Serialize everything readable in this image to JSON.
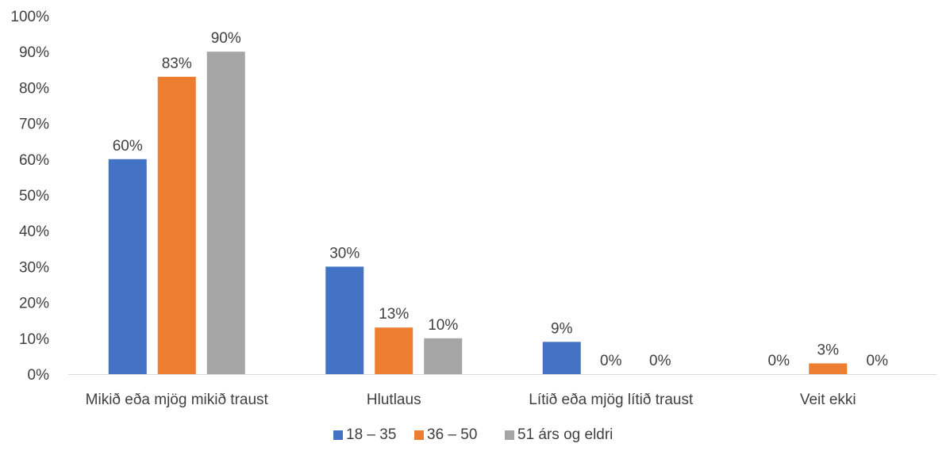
{
  "chart_data": {
    "type": "bar",
    "categories": [
      "Mikið eða mjög mikið traust",
      "Hlutlaus",
      "Lítið eða mjög lítið traust",
      "Veit ekki"
    ],
    "series": [
      {
        "name": "18 – 35",
        "color": "#4472C4",
        "values": [
          60,
          30,
          9,
          0
        ],
        "labels": [
          "60%",
          "30%",
          "9%",
          "0%"
        ]
      },
      {
        "name": "36 – 50",
        "color": "#ED7D31",
        "values": [
          83,
          13,
          0,
          3
        ],
        "labels": [
          "83%",
          "13%",
          "0%",
          "3%"
        ]
      },
      {
        "name": "51 árs og eldri",
        "color": "#A5A5A5",
        "values": [
          90,
          10,
          0,
          0
        ],
        "labels": [
          "90%",
          "10%",
          "0%",
          "0%"
        ]
      }
    ],
    "ylim": [
      0,
      100
    ],
    "yticks": [
      "0%",
      "10%",
      "20%",
      "30%",
      "40%",
      "50%",
      "60%",
      "70%",
      "80%",
      "90%",
      "100%"
    ],
    "grid": false,
    "legend_position": "bottom",
    "title": "",
    "xlabel": "",
    "ylabel": ""
  }
}
